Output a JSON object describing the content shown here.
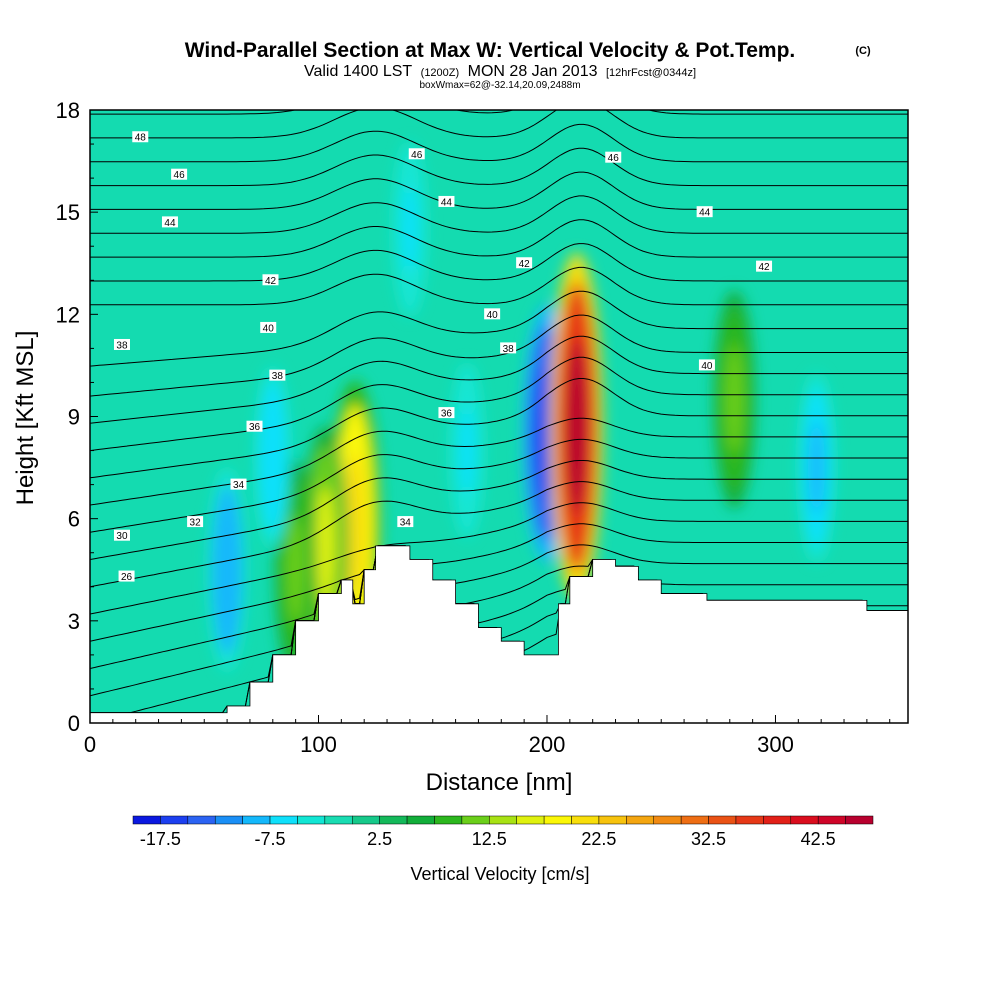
{
  "chart_data": {
    "type": "contour-cross-section",
    "title": "Wind-Parallel Section at Max W: Vertical Velocity & Pot.Temp.",
    "copyright": "(C)",
    "subtitle_valid": "Valid 1400 LST",
    "subtitle_utc": "(1200Z)",
    "subtitle_date": "MON 28 Jan 2013",
    "subtitle_fcst": "[12hrFcst@0344z]",
    "subtitle_box": "boxWmax=62@-32.14,20.09,2488m",
    "xlabel": "Distance [nm]",
    "ylabel": "Height [Kft MSL]",
    "xlim": [
      0,
      358
    ],
    "ylim": [
      0,
      18
    ],
    "xticks": [
      0,
      100,
      200,
      300
    ],
    "yticks": [
      0,
      3,
      6,
      9,
      12,
      15,
      18
    ],
    "colorbar": {
      "label": "Vertical Velocity [cm/s]",
      "bounds": [
        -20,
        -17.5,
        -15,
        -12.5,
        -10,
        -7.5,
        -5,
        -2.5,
        0,
        2.5,
        5,
        7.5,
        10,
        12.5,
        15,
        17.5,
        20,
        22.5,
        25,
        27.5,
        30,
        32.5,
        35,
        37.5,
        40,
        42.5,
        45,
        47.5
      ],
      "tick_labels": [
        "-17.5",
        "-7.5",
        "2.5",
        "12.5",
        "22.5",
        "32.5",
        "42.5"
      ],
      "tick_values": [
        -17.5,
        -7.5,
        2.5,
        12.5,
        22.5,
        32.5,
        42.5
      ],
      "colors": [
        "#0b18e0",
        "#1c3ff0",
        "#2b63f3",
        "#1a8ff6",
        "#14b8fb",
        "#0fe0fb",
        "#12e6d4",
        "#19dcb2",
        "#16c98a",
        "#14b95a",
        "#12ae3a",
        "#2cb71e",
        "#6bcf1a",
        "#a8e214",
        "#dff10f",
        "#fbf707",
        "#f8de0b",
        "#f7c30e",
        "#f4a610",
        "#f18a12",
        "#ee6e14",
        "#ea5215",
        "#e63817",
        "#e22018",
        "#da0d1e",
        "#cf0528",
        "#b8002e"
      ]
    },
    "terrain_kft": {
      "x_nm": [
        0,
        60,
        70,
        80,
        90,
        100,
        110,
        115,
        120,
        125,
        140,
        150,
        160,
        170,
        180,
        190,
        200,
        205,
        210,
        220,
        230,
        240,
        250,
        260,
        270,
        300,
        340,
        358
      ],
      "height": [
        0.3,
        0.5,
        1.2,
        2.0,
        3.0,
        3.8,
        4.2,
        3.5,
        4.5,
        5.2,
        4.8,
        4.2,
        3.5,
        2.8,
        2.4,
        2.0,
        2.0,
        3.5,
        4.3,
        4.8,
        4.6,
        4.2,
        3.8,
        3.8,
        3.6,
        3.6,
        3.3,
        3.3
      ]
    },
    "features": [
      {
        "x_nm": 200,
        "y_kft": 8.5,
        "w": -17.5
      },
      {
        "x_nm": 213,
        "y_kft": 8.7,
        "w": 45
      },
      {
        "x_nm": 282,
        "y_kft": 9.5,
        "w": 12
      },
      {
        "x_nm": 318,
        "y_kft": 7.5,
        "w": -8
      },
      {
        "x_nm": 116,
        "y_kft": 5.8,
        "w": 22
      },
      {
        "x_nm": 103,
        "y_kft": 5.2,
        "w": 15
      },
      {
        "x_nm": 90,
        "y_kft": 4.5,
        "w": 12
      },
      {
        "x_nm": 60,
        "y_kft": 4.5,
        "w": -10
      },
      {
        "x_nm": 80,
        "y_kft": 7.8,
        "w": -7
      },
      {
        "x_nm": 165,
        "y_kft": 8.0,
        "w": -6
      },
      {
        "x_nm": 140,
        "y_kft": 14.5,
        "w": -6
      }
    ],
    "theta_contour_labels": [
      {
        "text": "48",
        "x_nm": 22,
        "y_kft": 17.2
      },
      {
        "text": "46",
        "x_nm": 143,
        "y_kft": 16.7
      },
      {
        "text": "46",
        "x_nm": 229,
        "y_kft": 16.6
      },
      {
        "text": "46",
        "x_nm": 39,
        "y_kft": 16.1
      },
      {
        "text": "44",
        "x_nm": 156,
        "y_kft": 15.3
      },
      {
        "text": "44",
        "x_nm": 269,
        "y_kft": 15.0
      },
      {
        "text": "44",
        "x_nm": 35,
        "y_kft": 14.7
      },
      {
        "text": "42",
        "x_nm": 190,
        "y_kft": 13.5
      },
      {
        "text": "42",
        "x_nm": 295,
        "y_kft": 13.4
      },
      {
        "text": "42",
        "x_nm": 79,
        "y_kft": 13.0
      },
      {
        "text": "40",
        "x_nm": 176,
        "y_kft": 12.0
      },
      {
        "text": "40",
        "x_nm": 78,
        "y_kft": 11.6
      },
      {
        "text": "40",
        "x_nm": 270,
        "y_kft": 10.5
      },
      {
        "text": "38",
        "x_nm": 14,
        "y_kft": 11.1
      },
      {
        "text": "38",
        "x_nm": 183,
        "y_kft": 11.0
      },
      {
        "text": "38",
        "x_nm": 82,
        "y_kft": 10.2
      },
      {
        "text": "36",
        "x_nm": 72,
        "y_kft": 8.7
      },
      {
        "text": "36",
        "x_nm": 156,
        "y_kft": 9.1
      },
      {
        "text": "34",
        "x_nm": 65,
        "y_kft": 7.0
      },
      {
        "text": "34",
        "x_nm": 138,
        "y_kft": 5.9
      },
      {
        "text": "32",
        "x_nm": 46,
        "y_kft": 5.9
      },
      {
        "text": "30",
        "x_nm": 14,
        "y_kft": 5.5
      },
      {
        "text": "26",
        "x_nm": 16,
        "y_kft": 4.3
      }
    ]
  }
}
